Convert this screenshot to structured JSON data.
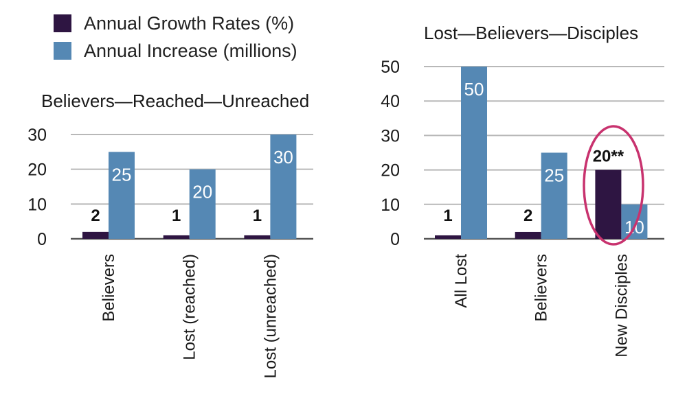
{
  "legend": [
    {
      "label": "Annual Growth Rates (%)",
      "color": "#2e1542"
    },
    {
      "label": "Annual Increase (millions)",
      "color": "#5588b4"
    }
  ],
  "chart_data": [
    {
      "type": "bar",
      "title": "Believers—Reached—Unreached",
      "categories": [
        "Believers",
        "Lost (reached)",
        "Lost (unreached)"
      ],
      "ylim": [
        0,
        30
      ],
      "yticks": [
        0,
        10,
        20,
        30
      ],
      "series": [
        {
          "name": "Annual Growth Rates (%)",
          "color": "#2e1542",
          "values": [
            2,
            1,
            1
          ],
          "labels": [
            "2",
            "1",
            "1"
          ]
        },
        {
          "name": "Annual Increase (millions)",
          "color": "#5588b4",
          "values": [
            25,
            20,
            30
          ],
          "labels": [
            "25",
            "20",
            "30"
          ]
        }
      ],
      "grid": true
    },
    {
      "type": "bar",
      "title": "Lost—Believers—Disciples",
      "categories": [
        "All Lost",
        "Believers",
        "New Disciples"
      ],
      "ylim": [
        0,
        50
      ],
      "yticks": [
        0,
        10,
        20,
        30,
        40,
        50
      ],
      "series": [
        {
          "name": "Annual Growth Rates (%)",
          "color": "#2e1542",
          "values": [
            1,
            2,
            20
          ],
          "labels": [
            "1",
            "2",
            "20**"
          ]
        },
        {
          "name": "Annual Increase (millions)",
          "color": "#5588b4",
          "values": [
            50,
            25,
            10
          ],
          "labels": [
            "50",
            "25",
            "10"
          ]
        }
      ],
      "grid": true,
      "highlight_category": "New Disciples",
      "highlight_color": "#c8326e"
    }
  ]
}
